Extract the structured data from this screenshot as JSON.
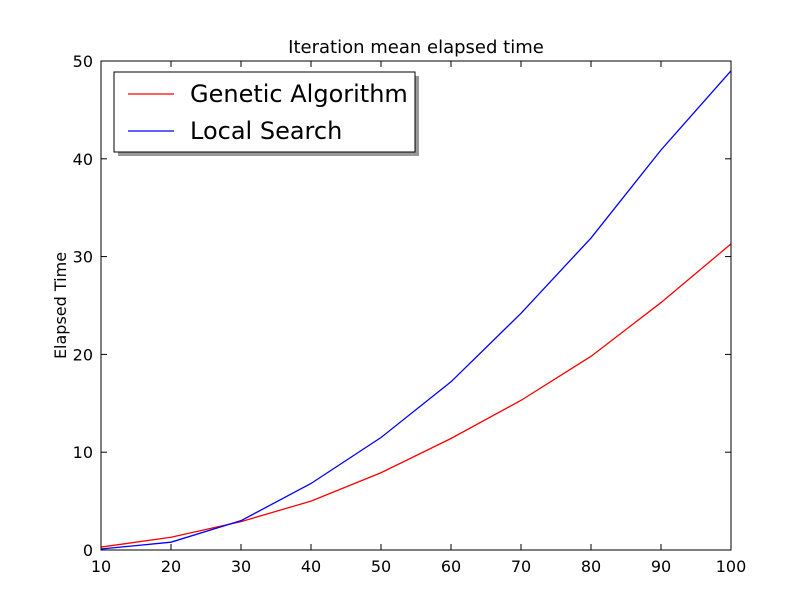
{
  "chart_data": {
    "type": "line",
    "title": "Iteration mean elapsed time",
    "xlabel": "",
    "ylabel": "Elapsed Time",
    "xlim": [
      10,
      100
    ],
    "ylim": [
      0,
      50
    ],
    "x": [
      10,
      20,
      30,
      40,
      50,
      60,
      70,
      80,
      90,
      100
    ],
    "xticks": [
      10,
      20,
      30,
      40,
      50,
      60,
      70,
      80,
      90,
      100
    ],
    "yticks": [
      0,
      10,
      20,
      30,
      40,
      50
    ],
    "grid": false,
    "legend": "upper-left",
    "series": [
      {
        "name": "Genetic Algorithm",
        "color": "#ff0000",
        "values": [
          0.3,
          1.3,
          2.9,
          5.0,
          7.9,
          11.4,
          15.3,
          19.8,
          25.3,
          31.3
        ]
      },
      {
        "name": "Local Search",
        "color": "#0000ff",
        "values": [
          0.1,
          0.8,
          3.0,
          6.8,
          11.5,
          17.2,
          24.2,
          31.9,
          40.9,
          49.0
        ]
      }
    ]
  }
}
